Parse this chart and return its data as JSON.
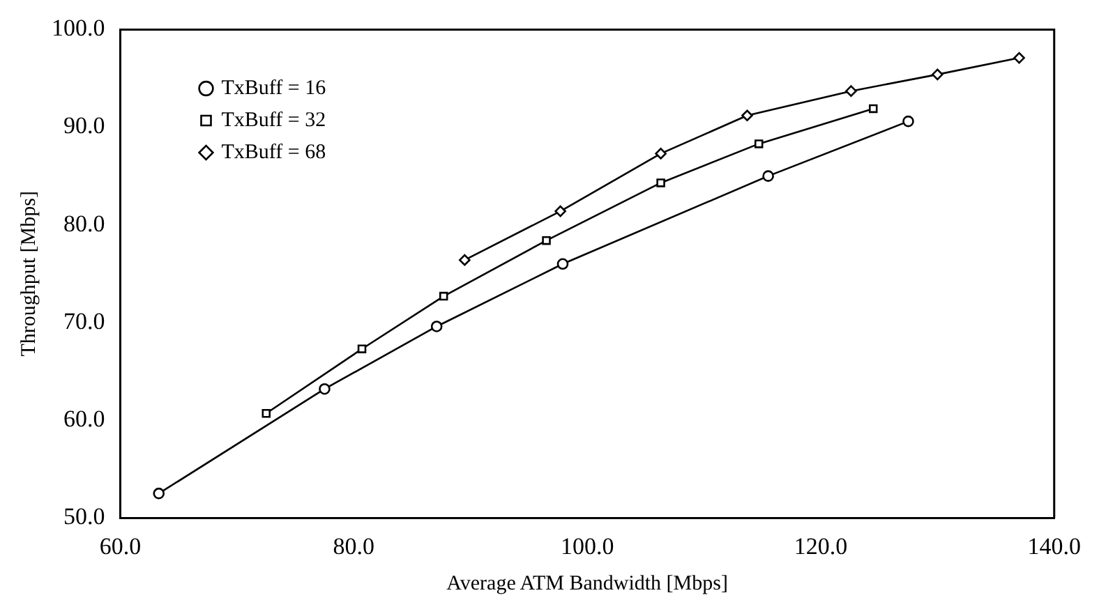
{
  "chart_data": {
    "type": "line",
    "xlabel": "Average ATM Bandwidth [Mbps]",
    "ylabel": "Throughput [Mbps]",
    "xlim": [
      60,
      140
    ],
    "xticks": [
      {
        "value": 60,
        "label": "60.0"
      },
      {
        "value": 80,
        "label": "80.0"
      },
      {
        "value": 100,
        "label": "100.0"
      },
      {
        "value": 120,
        "label": "120.0"
      },
      {
        "value": 140,
        "label": "140.0"
      }
    ],
    "ylim": [
      50,
      100
    ],
    "yticks": [
      {
        "value": 50,
        "label": "50.0"
      },
      {
        "value": 60,
        "label": "60.0"
      },
      {
        "value": 70,
        "label": "70.0"
      },
      {
        "value": 80,
        "label": "80.0"
      },
      {
        "value": 90,
        "label": "90.0"
      },
      {
        "value": 100,
        "label": "100.0"
      }
    ],
    "grid": false,
    "legend": "top left",
    "line_style": "solid",
    "series": [
      {
        "name": "TxBuff = 16",
        "color": "#000000",
        "marker": "circle",
        "x": [
          63.3,
          77.5,
          87.1,
          97.9,
          115.5,
          127.5
        ],
        "values": [
          52.5,
          63.2,
          69.6,
          76.0,
          85.0,
          90.6
        ]
      },
      {
        "name": "TxBuff = 32",
        "color": "#000000",
        "marker": "square",
        "x": [
          72.5,
          80.7,
          87.7,
          96.5,
          106.3,
          114.7,
          124.5
        ],
        "values": [
          60.7,
          67.3,
          72.7,
          78.4,
          84.3,
          88.3,
          91.9
        ]
      },
      {
        "name": "TxBuff = 68",
        "color": "#000000",
        "marker": "diamond",
        "x": [
          89.5,
          97.7,
          106.3,
          113.7,
          122.6,
          130.0,
          137.0
        ],
        "values": [
          76.4,
          81.4,
          87.3,
          91.2,
          93.7,
          95.4,
          97.1
        ]
      }
    ]
  }
}
